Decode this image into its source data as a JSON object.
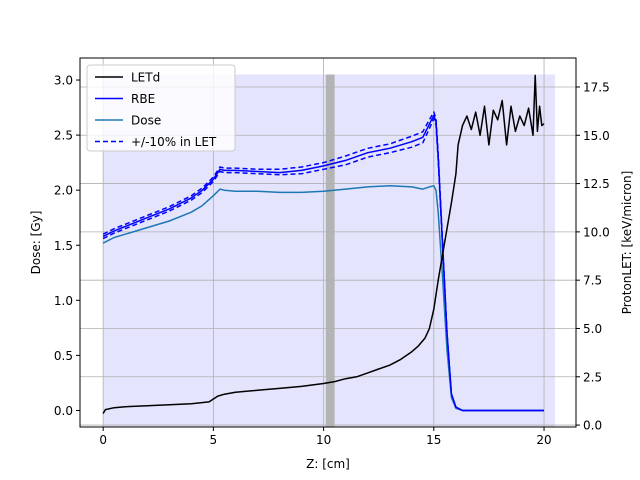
{
  "chart_data": {
    "type": "line",
    "xlabel": "Z: [cm]",
    "ylabel_left": "Dose: [Gy]",
    "ylabel_right": "ProtonLET: [keV/micron]",
    "xlim": [
      -1.05,
      21.45
    ],
    "ylim_left": [
      -0.15,
      3.2
    ],
    "ylim_right": [
      -0.1,
      19.0
    ],
    "grid": true,
    "legend_position": "upper-left",
    "x_ticks": [
      0,
      5,
      10,
      15,
      20
    ],
    "y_ticks_left": [
      0.0,
      0.5,
      1.0,
      1.5,
      2.0,
      2.5,
      3.0
    ],
    "y_ticks_right": [
      0.0,
      2.5,
      5.0,
      7.5,
      10.0,
      12.5,
      15.0,
      17.5
    ],
    "x_tick_labels": [
      "0",
      "5",
      "10",
      "15",
      "20"
    ],
    "y_tick_labels_left": [
      "0.0",
      "0.5",
      "1.0",
      "1.5",
      "2.0",
      "2.5",
      "3.0"
    ],
    "y_tick_labels_right": [
      "0.0",
      "2.5",
      "5.0",
      "7.5",
      "10.0",
      "12.5",
      "15.0",
      "17.5"
    ],
    "shaded_regions": [
      {
        "x": [
          0,
          20.5
        ],
        "y_left": [
          -0.15,
          3.05
        ],
        "color": "#e4e4fc"
      },
      {
        "x": [
          10.1,
          10.5
        ],
        "y_left": [
          -0.15,
          3.05
        ],
        "color": "#b4b4b4"
      }
    ],
    "series": [
      {
        "name": "LETd",
        "axis": "right",
        "color": "#000000",
        "style": "solid",
        "x": [
          0,
          0.1,
          0.5,
          1,
          2,
          3,
          4,
          4.8,
          5.2,
          5.5,
          6,
          7,
          8,
          9,
          10,
          10.5,
          11,
          11.5,
          12,
          12.5,
          13,
          13.5,
          14,
          14.3,
          14.6,
          14.8,
          15,
          15.2,
          15.5,
          15.8,
          16,
          16.1,
          16.3,
          16.5,
          16.7,
          16.9,
          17.1,
          17.3,
          17.5,
          17.7,
          17.9,
          18.1,
          18.3,
          18.5,
          18.7,
          18.9,
          19.1,
          19.3,
          19.5,
          19.6,
          19.7,
          19.8,
          19.9,
          20
        ],
        "y": [
          0.6,
          0.8,
          0.9,
          0.95,
          1.0,
          1.05,
          1.1,
          1.2,
          1.5,
          1.6,
          1.7,
          1.8,
          1.9,
          2.0,
          2.15,
          2.25,
          2.4,
          2.5,
          2.7,
          2.9,
          3.1,
          3.4,
          3.8,
          4.1,
          4.5,
          5.0,
          6.0,
          7.5,
          9.5,
          11.5,
          13.0,
          14.5,
          15.5,
          16.0,
          15.3,
          16.2,
          15.0,
          16.5,
          14.5,
          16.3,
          15.8,
          16.8,
          14.5,
          16.5,
          15.2,
          16.0,
          15.5,
          16.4,
          15.0,
          18.1,
          15.2,
          16.5,
          15.5,
          15.6
        ]
      },
      {
        "name": "RBE",
        "axis": "left",
        "color": "#0000ff",
        "style": "solid",
        "x": [
          0,
          0.5,
          1,
          2,
          3,
          4,
          4.5,
          5,
          5.3,
          5.5,
          6,
          7,
          8,
          9,
          10,
          11,
          12,
          13,
          14,
          14.5,
          14.8,
          15,
          15.1,
          15.2,
          15.4,
          15.6,
          15.8,
          16,
          16.3,
          16.5,
          17,
          18,
          19,
          20
        ],
        "y": [
          1.58,
          1.63,
          1.67,
          1.75,
          1.83,
          1.93,
          2.0,
          2.1,
          2.19,
          2.18,
          2.18,
          2.17,
          2.16,
          2.18,
          2.22,
          2.27,
          2.34,
          2.38,
          2.44,
          2.48,
          2.6,
          2.68,
          2.62,
          2.3,
          1.5,
          0.7,
          0.15,
          0.03,
          0.0,
          0.0,
          0.0,
          0.0,
          0.0,
          0.0
        ]
      },
      {
        "name": "Dose",
        "axis": "left",
        "color": "#1f77b4",
        "style": "solid",
        "x": [
          0,
          0.5,
          1,
          2,
          3,
          4,
          4.5,
          5,
          5.3,
          5.5,
          6,
          7,
          8,
          9,
          10,
          11,
          12,
          13,
          14,
          14.5,
          14.8,
          15,
          15.1,
          15.2,
          15.4,
          15.6,
          15.8,
          16,
          16.3,
          16.5,
          17,
          18,
          19,
          20
        ],
        "y": [
          1.52,
          1.57,
          1.6,
          1.66,
          1.72,
          1.8,
          1.86,
          1.95,
          2.01,
          2.0,
          1.99,
          1.99,
          1.98,
          1.98,
          1.99,
          2.01,
          2.03,
          2.04,
          2.03,
          2.01,
          2.03,
          2.04,
          2.0,
          1.8,
          1.2,
          0.55,
          0.12,
          0.02,
          0.0,
          0.0,
          0.0,
          0.0,
          0.0,
          0.0
        ]
      },
      {
        "name": "+/-10% in LET",
        "axis": "left",
        "color": "#0000ff",
        "style": "dashed",
        "x": [
          0,
          0.5,
          1,
          2,
          3,
          4,
          4.5,
          5,
          5.3,
          5.5,
          6,
          7,
          8,
          9,
          10,
          11,
          12,
          13,
          14,
          14.5,
          14.8,
          15,
          15.1,
          15.2,
          15.4,
          15.6,
          15.8,
          16,
          16.3,
          16.5,
          17,
          18,
          19,
          20
        ],
        "y": [
          1.6,
          1.65,
          1.69,
          1.77,
          1.85,
          1.95,
          2.02,
          2.12,
          2.21,
          2.2,
          2.2,
          2.19,
          2.19,
          2.21,
          2.25,
          2.31,
          2.38,
          2.42,
          2.49,
          2.53,
          2.64,
          2.71,
          2.65,
          2.33,
          1.52,
          0.71,
          0.15,
          0.03,
          0.0,
          0.0,
          0.0,
          0.0,
          0.0,
          0.0
        ]
      },
      {
        "name": "",
        "axis": "left",
        "color": "#0000ff",
        "style": "dashed",
        "x": [
          0,
          0.5,
          1,
          2,
          3,
          4,
          4.5,
          5,
          5.3,
          5.5,
          6,
          7,
          8,
          9,
          10,
          11,
          12,
          13,
          14,
          14.5,
          14.8,
          15,
          15.1,
          15.2,
          15.4,
          15.6,
          15.8,
          16,
          16.3,
          16.5,
          17,
          18,
          19,
          20
        ],
        "y": [
          1.56,
          1.61,
          1.65,
          1.73,
          1.81,
          1.91,
          1.98,
          2.08,
          2.17,
          2.16,
          2.16,
          2.15,
          2.14,
          2.15,
          2.19,
          2.23,
          2.3,
          2.34,
          2.39,
          2.43,
          2.56,
          2.65,
          2.59,
          2.27,
          1.48,
          0.69,
          0.15,
          0.03,
          0.0,
          0.0,
          0.0,
          0.0,
          0.0,
          0.0
        ]
      }
    ],
    "legend": [
      {
        "label": "LETd",
        "color": "#000000",
        "style": "solid"
      },
      {
        "label": "RBE",
        "color": "#0000ff",
        "style": "solid"
      },
      {
        "label": "Dose",
        "color": "#1f77b4",
        "style": "solid"
      },
      {
        "label": "+/-10% in LET",
        "color": "#0000ff",
        "style": "dashed"
      }
    ]
  }
}
